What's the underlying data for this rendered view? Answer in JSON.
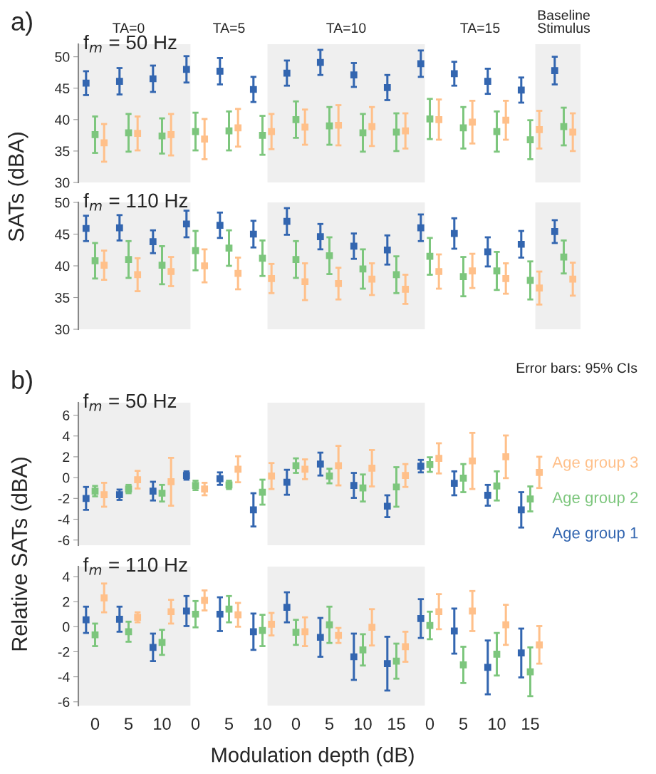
{
  "chart_data": [
    {
      "type": "scatter",
      "title": "a)",
      "categories": [
        "0",
        "5",
        "10",
        "0",
        "5",
        "10",
        "0",
        "5",
        "10",
        "15",
        "0",
        "5",
        "10",
        "15",
        null
      ],
      "marker": "square",
      "tick_labels": "y",
      "ylabel": "SATs (dBA)",
      "ylim": [
        30,
        52
      ],
      "yticks": [
        30,
        35,
        40,
        45,
        50
      ],
      "annotations": [
        "f$_{m}$ = 50 Hz",
        "TA=0",
        "TA=5",
        "TA=10",
        "TA=15",
        "Baseline\nStimulus"
      ],
      "series": [
        {
          "color": "#3366b0",
          "values": [
            45.8,
            46.1,
            46.5,
            48.0,
            47.7,
            44.8,
            47.4,
            49.1,
            47.1,
            45.1,
            48.9,
            47.3,
            46.1,
            44.7,
            47.8
          ],
          "errors": [
            1.9,
            2.1,
            2.1,
            2.1,
            2.1,
            2.0,
            2.0,
            2.0,
            1.9,
            2.0,
            2.1,
            1.9,
            2.0,
            2.0,
            2.2
          ]
        },
        {
          "color": "#7dc67d",
          "values": [
            37.6,
            37.9,
            37.4,
            38.1,
            38.2,
            37.5,
            40.0,
            39.0,
            37.9,
            38.0,
            40.1,
            38.7,
            38.1,
            36.8,
            38.9
          ],
          "errors": [
            2.9,
            3.0,
            2.8,
            3.0,
            3.1,
            3.1,
            2.9,
            3.0,
            3.0,
            3.0,
            3.2,
            3.3,
            3.2,
            3.1,
            3.0
          ]
        },
        {
          "color": "#ffc08a",
          "values": [
            36.3,
            37.8,
            37.6,
            36.9,
            38.7,
            38.1,
            38.8,
            39.1,
            38.9,
            38.2,
            40.0,
            39.6,
            39.9,
            38.4,
            38.0
          ],
          "errors": [
            3.0,
            2.7,
            3.3,
            3.2,
            3.0,
            2.8,
            2.8,
            3.2,
            3.1,
            2.8,
            3.2,
            3.4,
            3.1,
            3.0,
            3.0
          ]
        }
      ]
    },
    {
      "type": "scatter",
      "categories": [
        "0",
        "5",
        "10",
        "0",
        "5",
        "10",
        "0",
        "5",
        "10",
        "15",
        "0",
        "5",
        "10",
        "15",
        null
      ],
      "marker": "square",
      "tick_labels": "y",
      "ylim": [
        30,
        50
      ],
      "yticks": [
        30,
        35,
        40,
        45,
        50
      ],
      "annotations": [
        "f$_{m}$ = 110 Hz"
      ],
      "series": [
        {
          "color": "#3366b0",
          "values": [
            45.9,
            46.0,
            43.8,
            46.6,
            46.4,
            45.0,
            47.0,
            44.6,
            43.1,
            42.5,
            46.0,
            45.1,
            42.2,
            43.4,
            45.4
          ],
          "errors": [
            2.0,
            2.0,
            1.8,
            2.1,
            2.0,
            2.1,
            2.1,
            2.0,
            2.0,
            2.3,
            2.1,
            2.4,
            2.3,
            2.1,
            1.8
          ]
        },
        {
          "color": "#7dc67d",
          "values": [
            40.8,
            41.0,
            40.1,
            42.4,
            42.8,
            41.2,
            41.0,
            41.6,
            39.5,
            38.6,
            41.5,
            38.3,
            39.2,
            37.7,
            41.4
          ],
          "errors": [
            2.8,
            2.9,
            3.0,
            3.1,
            2.8,
            2.8,
            2.9,
            2.9,
            3.1,
            2.9,
            2.9,
            3.1,
            3.0,
            3.0,
            2.6
          ]
        },
        {
          "color": "#ffc08a",
          "values": [
            40.1,
            38.6,
            39.1,
            40.0,
            38.8,
            38.0,
            37.5,
            37.2,
            37.9,
            36.3,
            39.1,
            39.2,
            38.0,
            36.5,
            37.9
          ],
          "errors": [
            2.3,
            2.6,
            2.3,
            2.6,
            2.5,
            2.3,
            2.9,
            2.5,
            2.5,
            2.3,
            2.7,
            2.7,
            2.4,
            2.6,
            2.6
          ]
        }
      ]
    },
    {
      "type": "scatter",
      "title": "b)",
      "categories": [
        "0",
        "5",
        "10",
        "0",
        "5",
        "10",
        "0",
        "5",
        "10",
        "15",
        "0",
        "5",
        "10",
        "15"
      ],
      "marker": "square",
      "tick_labels": "y",
      "legend": "right",
      "ylabel": "Relative SATs (dBA)",
      "ylim": [
        -6.5,
        7.2
      ],
      "yticks": [
        -6,
        -4,
        -2,
        0,
        2,
        4,
        6
      ],
      "annotations": [
        "f$_{m}$ = 50 Hz",
        "Error bars: 95% CIs"
      ],
      "series": [
        {
          "name": "Age group 1",
          "color": "#3366b0",
          "values": [
            -2.0,
            -1.65,
            -1.3,
            0.2,
            -0.1,
            -3.1,
            -0.45,
            1.3,
            -0.75,
            -2.75,
            1.1,
            -0.55,
            -1.7,
            -3.1
          ],
          "errors": [
            1.1,
            0.5,
            0.9,
            0.4,
            0.6,
            1.6,
            1.2,
            1.1,
            1.2,
            1.05,
            0.6,
            1.15,
            1.0,
            1.7
          ]
        },
        {
          "name": "Age group 2",
          "color": "#7dc67d",
          "values": [
            -1.3,
            -1.1,
            -1.5,
            -0.75,
            -0.7,
            -1.4,
            1.15,
            0.15,
            -1.0,
            -0.9,
            1.25,
            -0.05,
            -0.8,
            -2.05
          ],
          "errors": [
            0.5,
            0.4,
            0.8,
            0.45,
            0.4,
            1.2,
            0.7,
            0.7,
            1.3,
            1.9,
            0.7,
            1.35,
            1.4,
            1.2
          ]
        },
        {
          "name": "Age group 3",
          "color": "#ffc08a",
          "values": [
            -1.65,
            -0.2,
            -0.4,
            -1.1,
            0.8,
            0.15,
            0.8,
            1.15,
            0.9,
            0.2,
            1.85,
            1.6,
            2.0,
            0.5
          ],
          "errors": [
            1.15,
            0.85,
            2.3,
            0.6,
            1.25,
            1.25,
            0.95,
            1.9,
            1.75,
            1.1,
            1.45,
            2.7,
            2.05,
            1.5
          ]
        }
      ]
    },
    {
      "type": "scatter",
      "categories": [
        "0",
        "5",
        "10",
        "0",
        "5",
        "10",
        "0",
        "5",
        "10",
        "15",
        "0",
        "5",
        "10",
        "15"
      ],
      "marker": "square",
      "xlabel": "Modulation depth (dB)",
      "ylim": [
        -6.3,
        4.8
      ],
      "yticks": [
        -6,
        -4,
        -2,
        0,
        2,
        4
      ],
      "annotations": [
        "f$_{m}$ = 110 Hz"
      ],
      "series": [
        {
          "color": "#3366b0",
          "values": [
            0.55,
            0.6,
            -1.65,
            1.25,
            1.0,
            -0.4,
            1.55,
            -0.85,
            -2.4,
            -2.95,
            0.65,
            -0.35,
            -3.25,
            -2.1
          ],
          "errors": [
            1.05,
            1.0,
            1.1,
            1.2,
            1.35,
            1.45,
            1.2,
            1.55,
            1.85,
            2.15,
            1.55,
            1.8,
            2.15,
            1.95
          ]
        },
        {
          "color": "#7dc67d",
          "values": [
            -0.65,
            -0.4,
            -1.25,
            1.0,
            1.4,
            -0.3,
            -0.45,
            0.15,
            -1.85,
            -2.75,
            0.1,
            -3.05,
            -2.2,
            -3.6
          ],
          "errors": [
            0.9,
            0.8,
            1.0,
            1.05,
            1.05,
            1.25,
            1.0,
            1.45,
            1.25,
            1.4,
            1.1,
            1.45,
            1.7,
            1.95
          ]
        },
        {
          "color": "#ffc08a",
          "values": [
            2.3,
            0.75,
            1.2,
            2.1,
            0.95,
            0.2,
            -0.4,
            -0.7,
            -0.05,
            -1.6,
            1.2,
            1.25,
            0.15,
            -1.45
          ],
          "errors": [
            1.15,
            0.4,
            0.95,
            0.8,
            0.95,
            0.9,
            1.15,
            0.6,
            1.45,
            1.2,
            1.4,
            1.6,
            1.6,
            1.5
          ]
        }
      ]
    }
  ]
}
